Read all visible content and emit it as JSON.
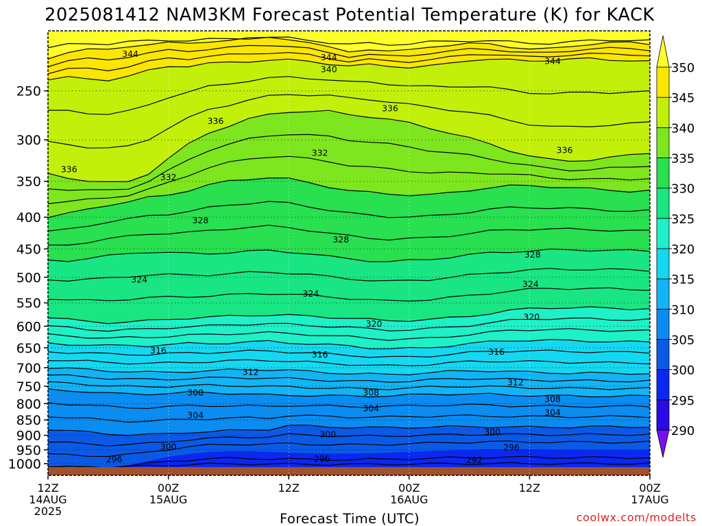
{
  "chart_data": {
    "type": "heatmap",
    "title": "2025081412 NAM3KM Forecast Potential Temperature (K) for KACK",
    "xlabel": "Forecast Time (UTC)",
    "ylabel": "",
    "credit": "coolwx.com/modelts",
    "x_ticks": [
      {
        "hours": 0,
        "label": "12Z",
        "label2": "14AUG",
        "label3": "2025"
      },
      {
        "hours": 12,
        "label": "00Z",
        "label2": "15AUG",
        "label3": ""
      },
      {
        "hours": 24,
        "label": "12Z",
        "label2": "",
        "label3": ""
      },
      {
        "hours": 36,
        "label": "00Z",
        "label2": "16AUG",
        "label3": ""
      },
      {
        "hours": 48,
        "label": "12Z",
        "label2": "",
        "label3": ""
      },
      {
        "hours": 60,
        "label": "00Z",
        "label2": "17AUG",
        "label3": ""
      }
    ],
    "xlim": [
      0,
      60
    ],
    "y_ticks": [
      "250",
      "300",
      "350",
      "400",
      "450",
      "500",
      "550",
      "600",
      "650",
      "700",
      "750",
      "800",
      "850",
      "900",
      "950",
      "1000"
    ],
    "y_scale": "log",
    "ylim": [
      1013,
      200
    ],
    "grid": true,
    "colorbar": {
      "levels": [
        290,
        295,
        300,
        305,
        310,
        315,
        320,
        325,
        330,
        335,
        340,
        345,
        350
      ],
      "labels": [
        "290",
        "295",
        "300",
        "305",
        "310",
        "315",
        "320",
        "325",
        "330",
        "335",
        "340",
        "345",
        "350"
      ],
      "colors": [
        "#7a10ee",
        "#2a0ae6",
        "#0a28f0",
        "#0a5ae6",
        "#0a8cf0",
        "#12b4f5",
        "#15d8f0",
        "#1ef0c8",
        "#19e682",
        "#28e050",
        "#7ee61e",
        "#c2f00a",
        "#fae600",
        "#ffff28"
      ],
      "under_color": "#7a10ee",
      "over_color": "#ffff28"
    },
    "contour_interval": 4,
    "contour_labels": [
      {
        "value": 344,
        "hours": 8.2,
        "pressure": 218
      },
      {
        "value": 344,
        "hours": 28.0,
        "pressure": 221
      },
      {
        "value": 340,
        "hours": 28.0,
        "pressure": 231
      },
      {
        "value": 344,
        "hours": 50.3,
        "pressure": 224
      },
      {
        "value": 336,
        "hours": 16.7,
        "pressure": 280
      },
      {
        "value": 336,
        "hours": 34.1,
        "pressure": 267
      },
      {
        "value": 336,
        "hours": 51.5,
        "pressure": 312
      },
      {
        "value": 336,
        "hours": 2.1,
        "pressure": 335
      },
      {
        "value": 332,
        "hours": 12.0,
        "pressure": 345
      },
      {
        "value": 332,
        "hours": 27.1,
        "pressure": 315
      },
      {
        "value": 328,
        "hours": 15.2,
        "pressure": 405
      },
      {
        "value": 328,
        "hours": 29.2,
        "pressure": 435
      },
      {
        "value": 328,
        "hours": 48.3,
        "pressure": 460
      },
      {
        "value": 324,
        "hours": 9.1,
        "pressure": 505
      },
      {
        "value": 324,
        "hours": 26.2,
        "pressure": 532
      },
      {
        "value": 324,
        "hours": 48.1,
        "pressure": 513
      },
      {
        "value": 320,
        "hours": 32.5,
        "pressure": 595
      },
      {
        "value": 320,
        "hours": 48.2,
        "pressure": 580
      },
      {
        "value": 316,
        "hours": 11.0,
        "pressure": 657
      },
      {
        "value": 316,
        "hours": 27.1,
        "pressure": 667
      },
      {
        "value": 316,
        "hours": 44.7,
        "pressure": 660
      },
      {
        "value": 312,
        "hours": 20.2,
        "pressure": 712
      },
      {
        "value": 312,
        "hours": 46.6,
        "pressure": 740
      },
      {
        "value": 308,
        "hours": 14.7,
        "pressure": 768
      },
      {
        "value": 308,
        "hours": 32.2,
        "pressure": 768
      },
      {
        "value": 308,
        "hours": 50.3,
        "pressure": 787
      },
      {
        "value": 304,
        "hours": 14.7,
        "pressure": 836
      },
      {
        "value": 304,
        "hours": 32.2,
        "pressure": 815
      },
      {
        "value": 304,
        "hours": 50.3,
        "pressure": 827
      },
      {
        "value": 300,
        "hours": 27.9,
        "pressure": 898
      },
      {
        "value": 300,
        "hours": 44.3,
        "pressure": 890
      },
      {
        "value": 300,
        "hours": 12.0,
        "pressure": 940
      },
      {
        "value": 296,
        "hours": 6.6,
        "pressure": 985
      },
      {
        "value": 296,
        "hours": 27.3,
        "pressure": 983
      },
      {
        "value": 296,
        "hours": 46.2,
        "pressure": 942
      },
      {
        "value": 292,
        "hours": 42.5,
        "pressure": 988
      }
    ],
    "fill_bands": [
      {
        "label": "345-350+",
        "lower": [
          222,
          216,
          214,
          215,
          212,
          210,
          209,
          210,
          208,
          207,
          206,
          205,
          206,
          209,
          213,
          216,
          214,
          216,
          215,
          212,
          211,
          210,
          210,
          212,
          214,
          214,
          212,
          210,
          209,
          209,
          210
        ]
      },
      {
        "label": "340-345",
        "lower": [
          240,
          238,
          239,
          240,
          237,
          232,
          228,
          228,
          226,
          225,
          224,
          223,
          223,
          224,
          226,
          228,
          227,
          228,
          229,
          228,
          226,
          223,
          222,
          223,
          224,
          223,
          222,
          222,
          223,
          223,
          224
        ]
      },
      {
        "label": "335-340",
        "lower": [
          340,
          345,
          350,
          352,
          350,
          340,
          322,
          305,
          292,
          285,
          278,
          273,
          270,
          270,
          270,
          273,
          275,
          278,
          282,
          287,
          292,
          298,
          305,
          312,
          318,
          323,
          325,
          323,
          320,
          318,
          315
        ]
      },
      {
        "label": "330-335",
        "lower": [
          400,
          395,
          388,
          382,
          378,
          372,
          368,
          362,
          355,
          350,
          347,
          345,
          347,
          352,
          357,
          362,
          365,
          367,
          368,
          368,
          366,
          362,
          358,
          356,
          356,
          357,
          358,
          360,
          362,
          363,
          362
        ]
      },
      {
        "label": "325-330",
        "lower": [
          470,
          470,
          466,
          462,
          458,
          455,
          456,
          458,
          458,
          456,
          454,
          453,
          455,
          458,
          463,
          467,
          470,
          472,
          470,
          468,
          464,
          460,
          457,
          455,
          453,
          452,
          452,
          452,
          452,
          453,
          454
        ]
      },
      {
        "label": "320-325",
        "lower": [
          580,
          585,
          590,
          592,
          590,
          588,
          585,
          582,
          580,
          578,
          576,
          575,
          576,
          578,
          580,
          582,
          585,
          588,
          587,
          585,
          582,
          578,
          572,
          566,
          562,
          560,
          560,
          560,
          561,
          562,
          562
        ]
      },
      {
        "label": "315-320",
        "lower": [
          640,
          642,
          643,
          645,
          645,
          645,
          642,
          640,
          640,
          638,
          636,
          635,
          638,
          640,
          643,
          646,
          650,
          652,
          652,
          650,
          645,
          640,
          636,
          633,
          632,
          632,
          633,
          634,
          635,
          636,
          636
        ]
      },
      {
        "label": "310-315",
        "lower": [
          700,
          702,
          705,
          708,
          710,
          712,
          712,
          710,
          708,
          706,
          705,
          705,
          707,
          710,
          713,
          715,
          717,
          718,
          716,
          713,
          710,
          708,
          708,
          710,
          712,
          713,
          714,
          714,
          715,
          715,
          715
        ]
      },
      {
        "label": "305-310",
        "lower": [
          760,
          762,
          765,
          770,
          772,
          772,
          770,
          768,
          768,
          770,
          772,
          775,
          775,
          776,
          777,
          778,
          778,
          777,
          775,
          773,
          772,
          772,
          773,
          775,
          776,
          777,
          778,
          778,
          778,
          778,
          778
        ]
      },
      {
        "label": "300-305",
        "lower": [
          880,
          885,
          890,
          895,
          898,
          898,
          895,
          890,
          888,
          885,
          882,
          880,
          868,
          870,
          872,
          874,
          875,
          875,
          874,
          873,
          872,
          872,
          872,
          873,
          873,
          873,
          873,
          872,
          872,
          872,
          872
        ]
      },
      {
        "label": "295-300",
        "lower": [
          1013,
          1013,
          1013,
          1013,
          1005,
          990,
          975,
          965,
          958,
          955,
          955,
          957,
          960,
          962,
          963,
          963,
          962,
          960,
          957,
          955,
          952,
          950,
          948,
          948,
          948,
          949,
          950,
          950,
          950,
          950,
          950
        ]
      }
    ]
  }
}
